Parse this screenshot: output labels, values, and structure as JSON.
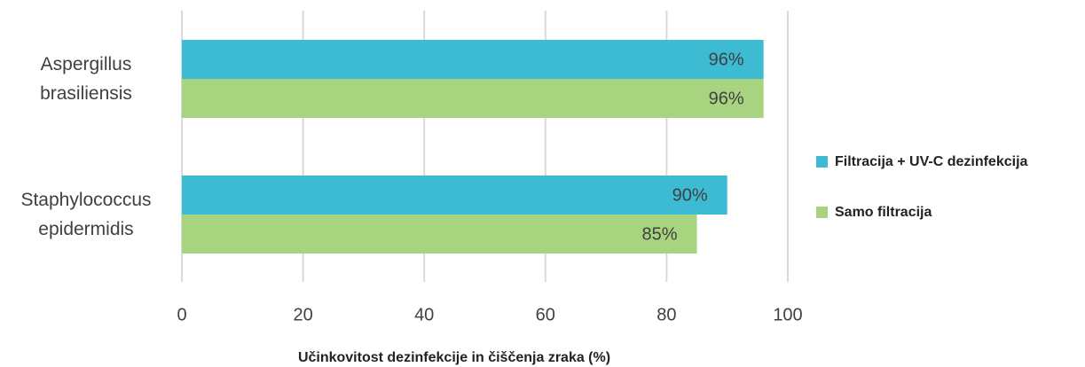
{
  "chart_data": {
    "type": "hbar",
    "categories": [
      "Aspergillus brasiliensis",
      "Staphylococcus epidermidis"
    ],
    "series": [
      {
        "name": "Filtracija + UV-C dezinfekcija",
        "color": "#3dbbd3",
        "values": [
          96,
          90
        ],
        "value_labels": [
          "96%",
          "90%"
        ]
      },
      {
        "name": "Samo filtracija",
        "color": "#a9d47f",
        "values": [
          96,
          85
        ],
        "value_labels": [
          "96%",
          "85%"
        ]
      }
    ],
    "x_label": "Učinkovitost dezinfekcije in čiščenja zraka (%)",
    "xlim": [
      0,
      100
    ],
    "xticks": [
      0,
      20,
      40,
      60,
      80,
      100
    ],
    "grid": true,
    "legend": "right"
  }
}
